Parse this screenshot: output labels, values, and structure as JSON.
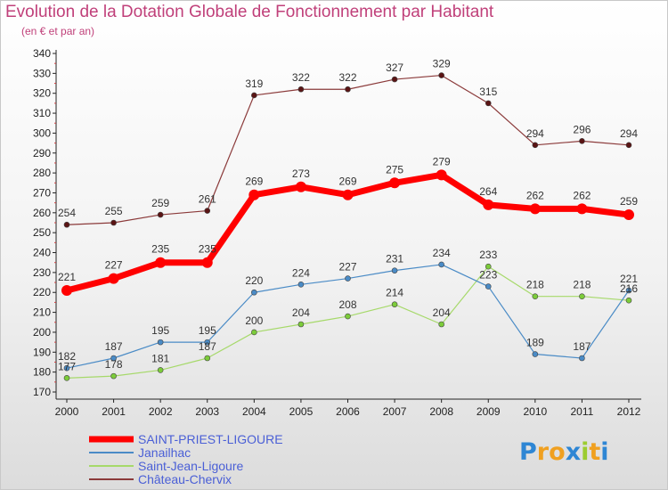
{
  "title": "Evolution de la Dotation Globale de Fonctionnement par Habitant",
  "subtitle": "(en € et par an)",
  "logo": "Proxiti",
  "chart_data": {
    "type": "line",
    "title": "Evolution de la Dotation Globale de Fonctionnement par Habitant",
    "subtitle": "(en € et par an)",
    "x": [
      "2000",
      "2001",
      "2002",
      "2003",
      "2004",
      "2005",
      "2006",
      "2007",
      "2008",
      "2009",
      "2010",
      "2011",
      "2012"
    ],
    "ylim": [
      170,
      340
    ],
    "ytick_step": 10,
    "grid": false,
    "legend_position": "bottom-left",
    "series": [
      {
        "name": "SAINT-PRIEST-LIGOURE",
        "color": "#ff0000",
        "marker_color": "#ff0000",
        "values": [
          221,
          227,
          235,
          235,
          269,
          273,
          269,
          275,
          279,
          264,
          262,
          262,
          259
        ]
      },
      {
        "name": "Janailhac",
        "color": "#4a8bc6",
        "marker_color": "#4a8bc6",
        "values": [
          182,
          187,
          195,
          195,
          220,
          224,
          227,
          231,
          234,
          223,
          189,
          187,
          221
        ]
      },
      {
        "name": "Saint-Jean-Ligoure",
        "color": "#a6d96a",
        "marker_color": "#7ccc3a",
        "values": [
          177,
          178,
          181,
          187,
          200,
          204,
          208,
          214,
          204,
          233,
          218,
          218,
          216
        ]
      },
      {
        "name": "Château-Chervix",
        "color": "#8b3a3a",
        "marker_color": "#5a1414",
        "values": [
          254,
          255,
          259,
          261,
          319,
          322,
          322,
          327,
          329,
          315,
          294,
          296,
          294
        ]
      }
    ]
  }
}
